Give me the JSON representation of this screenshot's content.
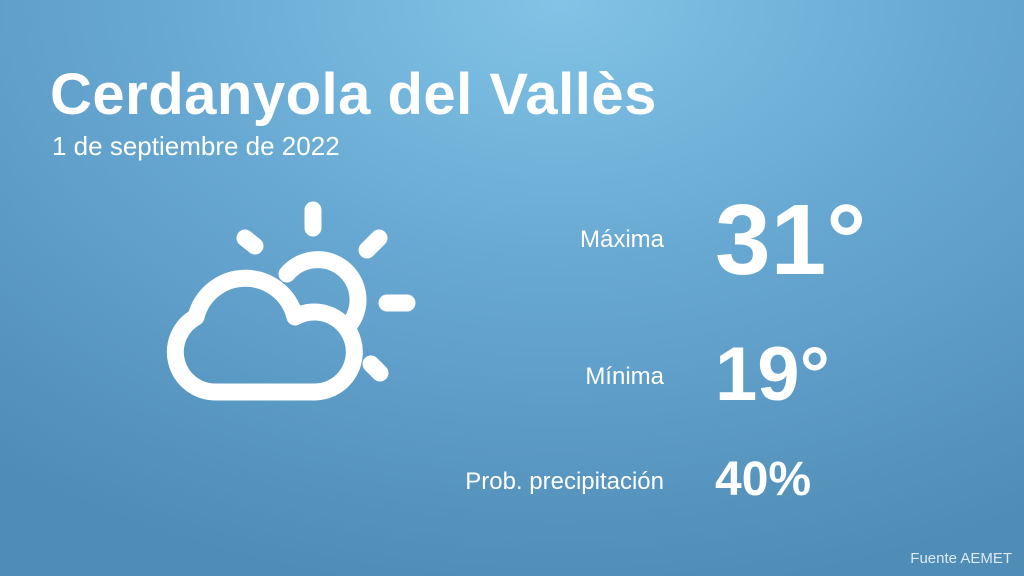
{
  "location": "Cerdanyola del Vallès",
  "date": "1 de septiembre de 2022",
  "condition_icon": "partly-cloudy-icon",
  "max": {
    "label": "Máxima",
    "value": "31°"
  },
  "min": {
    "label": "Mínima",
    "value": "19°"
  },
  "precip": {
    "label": "Prob. precipitación",
    "value": "40%"
  },
  "source": "Fuente AEMET"
}
